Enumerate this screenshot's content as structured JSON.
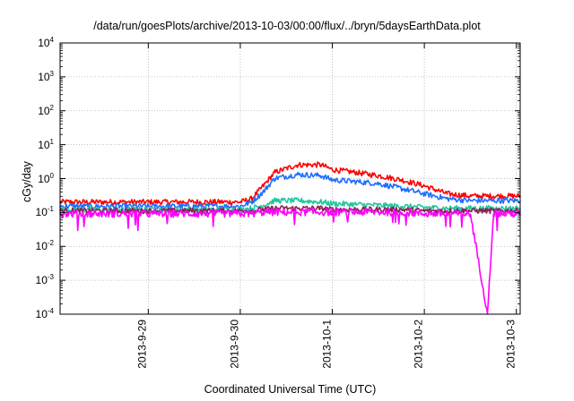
{
  "chart_data": {
    "type": "line",
    "title": "/data/run/goesPlots/archive/2013-10-03/00:00/flux/../bryn/5daysEarthData.plot",
    "xlabel": "Coordinated Universal Time (UTC)",
    "ylabel": "cGy/day",
    "yscale": "log",
    "ylim": [
      0.0001,
      10000
    ],
    "xlim": [
      "2013-09-28 01:00",
      "2013-10-03 01:00"
    ],
    "grid": true,
    "y_ticks": [
      {
        "base": "10",
        "exp": "4"
      },
      {
        "base": "10",
        "exp": "3"
      },
      {
        "base": "10",
        "exp": "2"
      },
      {
        "base": "10",
        "exp": "1"
      },
      {
        "base": "10",
        "exp": "0"
      },
      {
        "base": "10",
        "exp": "-1"
      },
      {
        "base": "10",
        "exp": "-2"
      },
      {
        "base": "10",
        "exp": "-3"
      },
      {
        "base": "10",
        "exp": "-4"
      }
    ],
    "x_ticks": [
      "2013-9-29",
      "2013-9-30",
      "2013-10-1",
      "2013-10-2",
      "2013-10-3"
    ],
    "x_tick_dates": [
      "2013-09-29",
      "2013-09-30",
      "2013-10-01",
      "2013-10-02",
      "2013-10-03"
    ],
    "x": [
      "2013-09-28 01:00",
      "2013-09-29 00:00",
      "2013-09-30 00:00",
      "2013-09-30 03:00",
      "2013-09-30 06:00",
      "2013-09-30 09:00",
      "2013-09-30 15:00",
      "2013-09-30 21:00",
      "2013-10-01 00:00",
      "2013-10-01 06:00",
      "2013-10-01 12:00",
      "2013-10-01 18:00",
      "2013-10-02 00:00",
      "2013-10-02 06:00",
      "2013-10-02 12:00",
      "2013-10-02 16:30",
      "2013-10-02 18:00",
      "2013-10-03 01:00"
    ],
    "series": [
      {
        "color": "#ff0000",
        "values": [
          0.2,
          0.2,
          0.2,
          0.25,
          0.6,
          1.5,
          2.5,
          2.5,
          1.8,
          1.5,
          1.2,
          0.9,
          0.6,
          0.35,
          0.3,
          0.3,
          0.3,
          0.3
        ]
      },
      {
        "color": "#1f6fff",
        "values": [
          0.15,
          0.15,
          0.15,
          0.2,
          0.4,
          1.0,
          1.3,
          1.2,
          0.9,
          0.8,
          0.7,
          0.5,
          0.35,
          0.25,
          0.22,
          0.22,
          0.22,
          0.22
        ]
      },
      {
        "color": "#20c8a0",
        "values": [
          0.12,
          0.12,
          0.12,
          0.13,
          0.16,
          0.22,
          0.22,
          0.2,
          0.18,
          0.17,
          0.16,
          0.15,
          0.14,
          0.13,
          0.13,
          0.13,
          0.13,
          0.13
        ]
      },
      {
        "color": "#8b2252",
        "values": [
          0.11,
          0.11,
          0.11,
          0.11,
          0.12,
          0.13,
          0.13,
          0.13,
          0.12,
          0.12,
          0.12,
          0.12,
          0.11,
          0.11,
          0.11,
          0.11,
          0.11,
          0.11
        ]
      },
      {
        "color": "#ff00ff",
        "values": [
          0.09,
          0.09,
          0.09,
          0.09,
          0.1,
          0.1,
          0.1,
          0.1,
          0.1,
          0.1,
          0.1,
          0.1,
          0.09,
          0.09,
          0.09,
          0.0001,
          0.09,
          0.09
        ]
      }
    ]
  }
}
